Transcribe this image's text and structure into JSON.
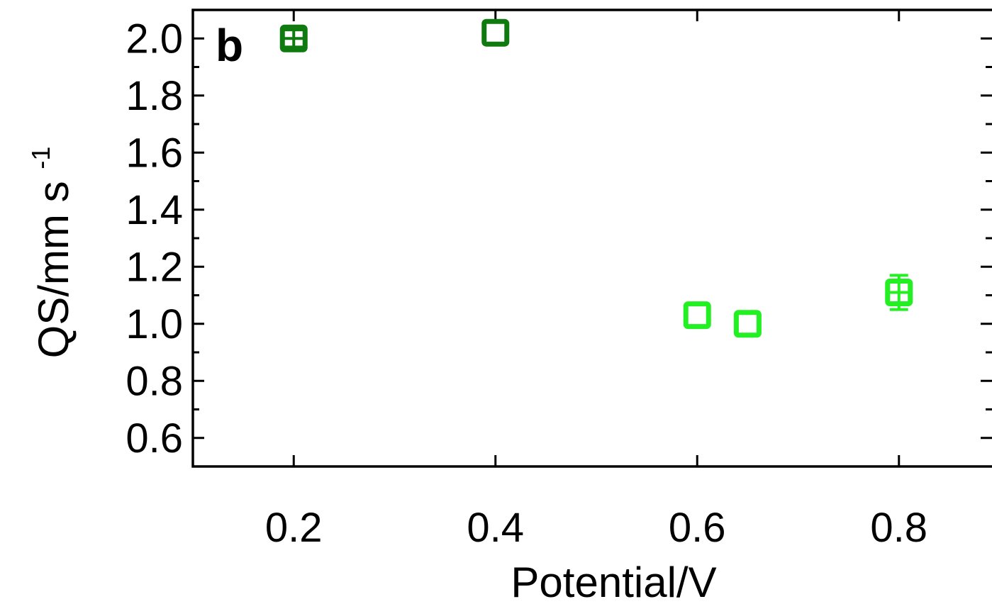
{
  "chart_data": {
    "type": "scatter",
    "panel_label": "b",
    "xlabel": "Potential/V",
    "ylabel": "QS/mm s",
    "ylabel_superscript": "-1",
    "xlim": [
      0.1,
      0.9
    ],
    "ylim": [
      0.5,
      2.1
    ],
    "x_ticks": [
      0.2,
      0.4,
      0.6,
      0.8
    ],
    "x_tick_labels": [
      "0.2",
      "0.4",
      "0.6",
      "0.8"
    ],
    "y_ticks": [
      0.6,
      0.8,
      1.0,
      1.2,
      1.4,
      1.6,
      1.8,
      2.0
    ],
    "y_tick_labels": [
      "0.6",
      "0.8",
      "1.0",
      "1.2",
      "1.4",
      "1.6",
      "1.8",
      "2.0"
    ],
    "grid": false,
    "marker": "open-square",
    "series": [
      {
        "color": "#0f7a0f",
        "points": [
          {
            "x": 0.2,
            "y": 2.0,
            "err": 0.03
          },
          {
            "x": 0.4,
            "y": 2.02,
            "err": 0.0
          }
        ]
      },
      {
        "color": "#22f022",
        "points": [
          {
            "x": 0.6,
            "y": 1.03,
            "err": 0.0
          },
          {
            "x": 0.65,
            "y": 1.0,
            "err": 0.0
          },
          {
            "x": 0.8,
            "y": 1.11,
            "err": 0.06
          }
        ]
      }
    ]
  }
}
